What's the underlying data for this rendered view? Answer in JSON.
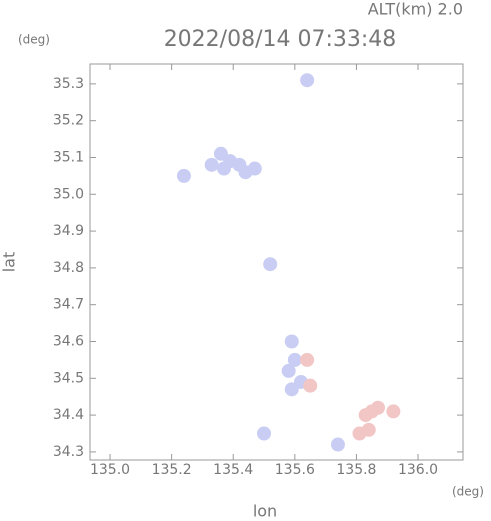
{
  "chart_data": {
    "type": "scatter",
    "subtitle": "ALT(km) 2.0",
    "title": "2022/08/14 07:33:48",
    "y_unit": "(deg)",
    "x_unit": "(deg)",
    "ylabel": "lat",
    "xlabel": "lon",
    "xlim": [
      134.935,
      136.146
    ],
    "ylim": [
      34.278,
      35.354
    ],
    "xticks": [
      {
        "value": 135,
        "label": "135.0"
      },
      135.2,
      135.4,
      135.6,
      135.8,
      {
        "value": 136,
        "label": "136.0"
      }
    ],
    "yticks": [
      34.3,
      34.4,
      34.5,
      34.6,
      34.7,
      34.8,
      34.9,
      {
        "value": 35,
        "label": "35.0"
      },
      35.1,
      35.2,
      35.3
    ],
    "series": [
      {
        "color": "#c9cdf3",
        "x": [
          135.36,
          135.39,
          135.42,
          135.37,
          135.44,
          135.33,
          135.47,
          135.24,
          135.64,
          135.52,
          135.59,
          135.6,
          135.58,
          135.62,
          135.59,
          135.5,
          135.74
        ],
        "values": [
          35.11,
          35.09,
          35.08,
          35.07,
          35.06,
          35.08,
          35.07,
          35.05,
          35.31,
          34.81,
          34.6,
          34.55,
          34.52,
          34.49,
          34.47,
          34.35,
          34.32
        ]
      },
      {
        "color": "#f3c6c6",
        "x": [
          135.85,
          135.83,
          135.87,
          135.84,
          135.81,
          135.92,
          135.64,
          135.65
        ],
        "values": [
          34.41,
          34.4,
          34.42,
          34.36,
          34.35,
          34.41,
          34.55,
          34.48
        ]
      }
    ]
  }
}
